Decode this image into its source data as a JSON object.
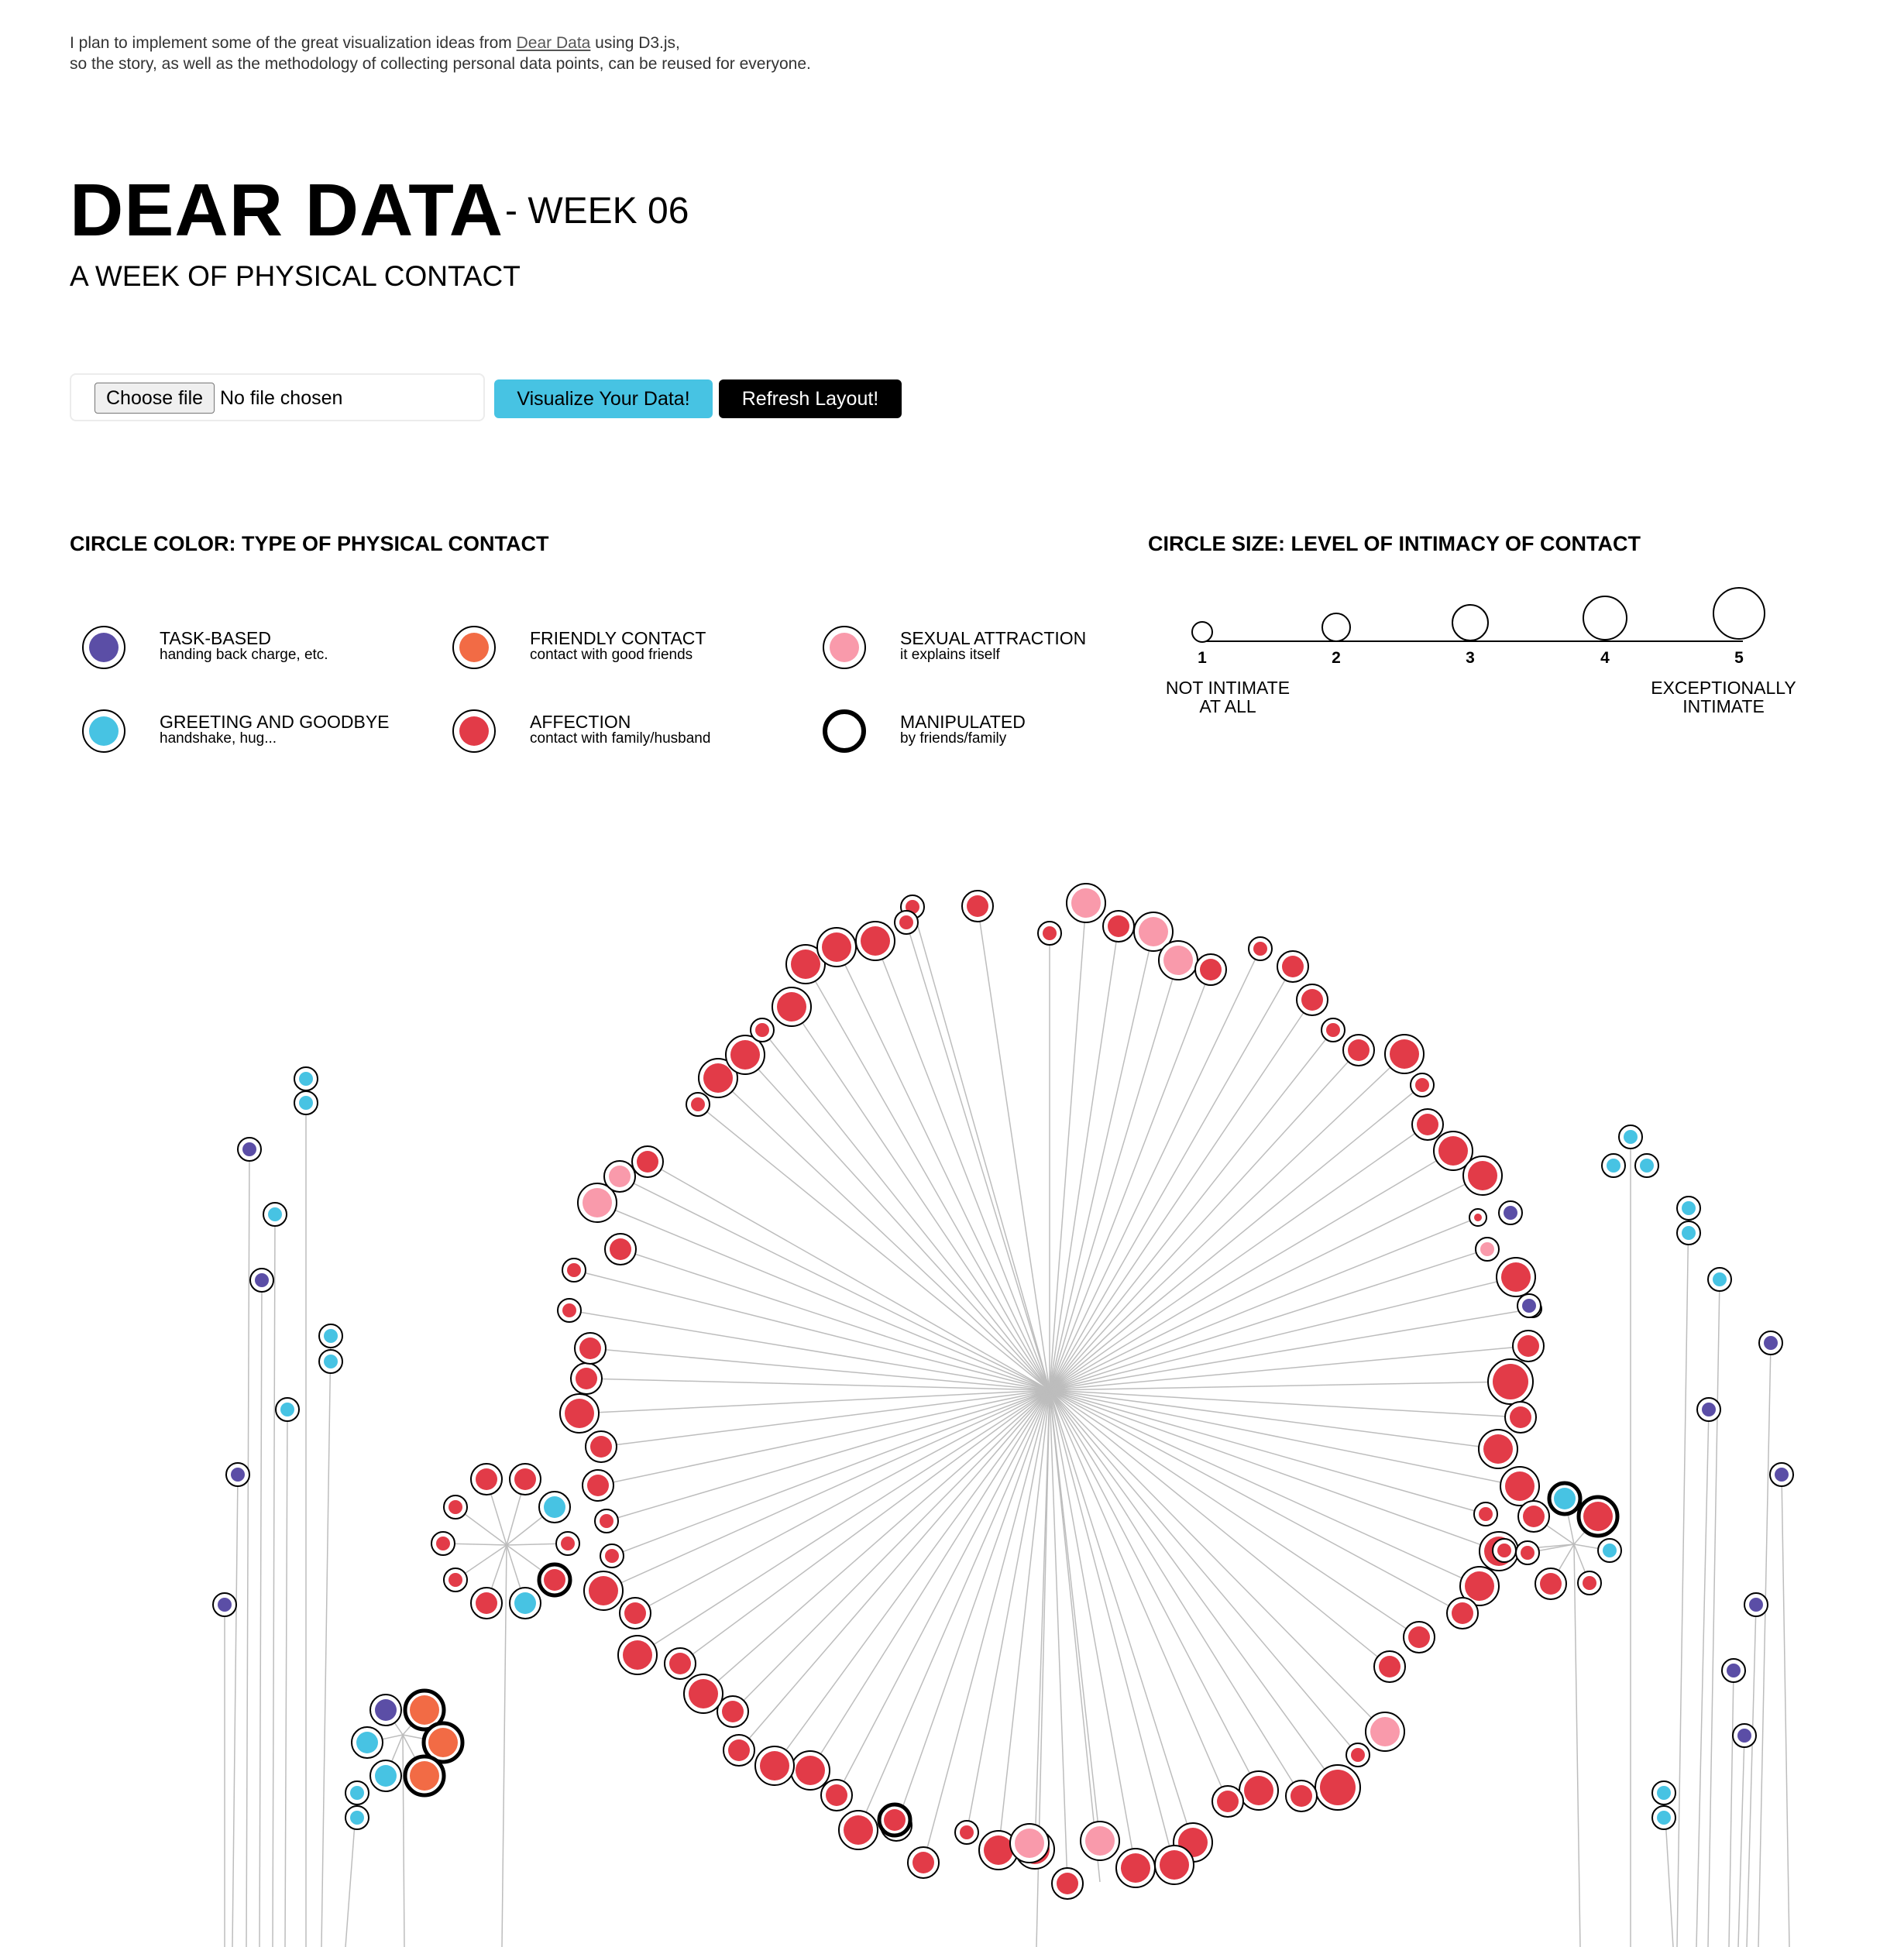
{
  "intro": {
    "before_link": "I plan to implement some of the great visualization ideas from ",
    "link_text": "Dear Data",
    "after_link": " using D3.js,",
    "line2": "so the story, as well as the methodology of collecting personal data points, can be reused for everyone."
  },
  "header": {
    "title": "DEAR DATA",
    "week": "- WEEK 06",
    "subtitle": "A WEEK OF PHYSICAL CONTACT"
  },
  "controls": {
    "choose_file_label": "Choose file",
    "file_status": "No file chosen",
    "visualize_label": "Visualize Your Data!",
    "refresh_label": "Refresh Layout!"
  },
  "legend_color": {
    "heading": "CIRCLE COLOR: TYPE OF PHYSICAL CONTACT",
    "items": [
      {
        "label": "TASK-BASED",
        "desc": "handing back charge, etc.",
        "color": "#5b4ea6",
        "thick": false
      },
      {
        "label": "GREETING AND GOODBYE",
        "desc": "handshake, hug...",
        "color": "#47c3e3",
        "thick": false
      },
      {
        "label": "FRIENDLY CONTACT",
        "desc": "contact with good friends",
        "color": "#f26b45",
        "thick": false
      },
      {
        "label": "AFFECTION",
        "desc": "contact with family/husband",
        "color": "#e23b48",
        "thick": false
      },
      {
        "label": "SEXUAL ATTRACTION",
        "desc": "it explains itself",
        "color": "#f99aab",
        "thick": false
      },
      {
        "label": "MANIPULATED",
        "desc": "by friends/family",
        "color": "#ffffff",
        "thick": true
      }
    ]
  },
  "legend_size": {
    "heading": "CIRCLE SIZE: LEVEL OF INTIMACY OF CONTACT",
    "levels": [
      "1",
      "2",
      "3",
      "4",
      "5"
    ],
    "low_label_1": "NOT INTIMATE",
    "low_label_2": "AT ALL",
    "high_label_1": "EXCEPTIONALLY",
    "high_label_2": "INTIMATE"
  },
  "colors": {
    "task": "#5b4ea6",
    "greeting": "#47c3e3",
    "friendly": "#f26b45",
    "affection": "#e23b48",
    "sexual": "#f99aab",
    "link": "#bdbdbd",
    "outline": "#000000"
  }
}
